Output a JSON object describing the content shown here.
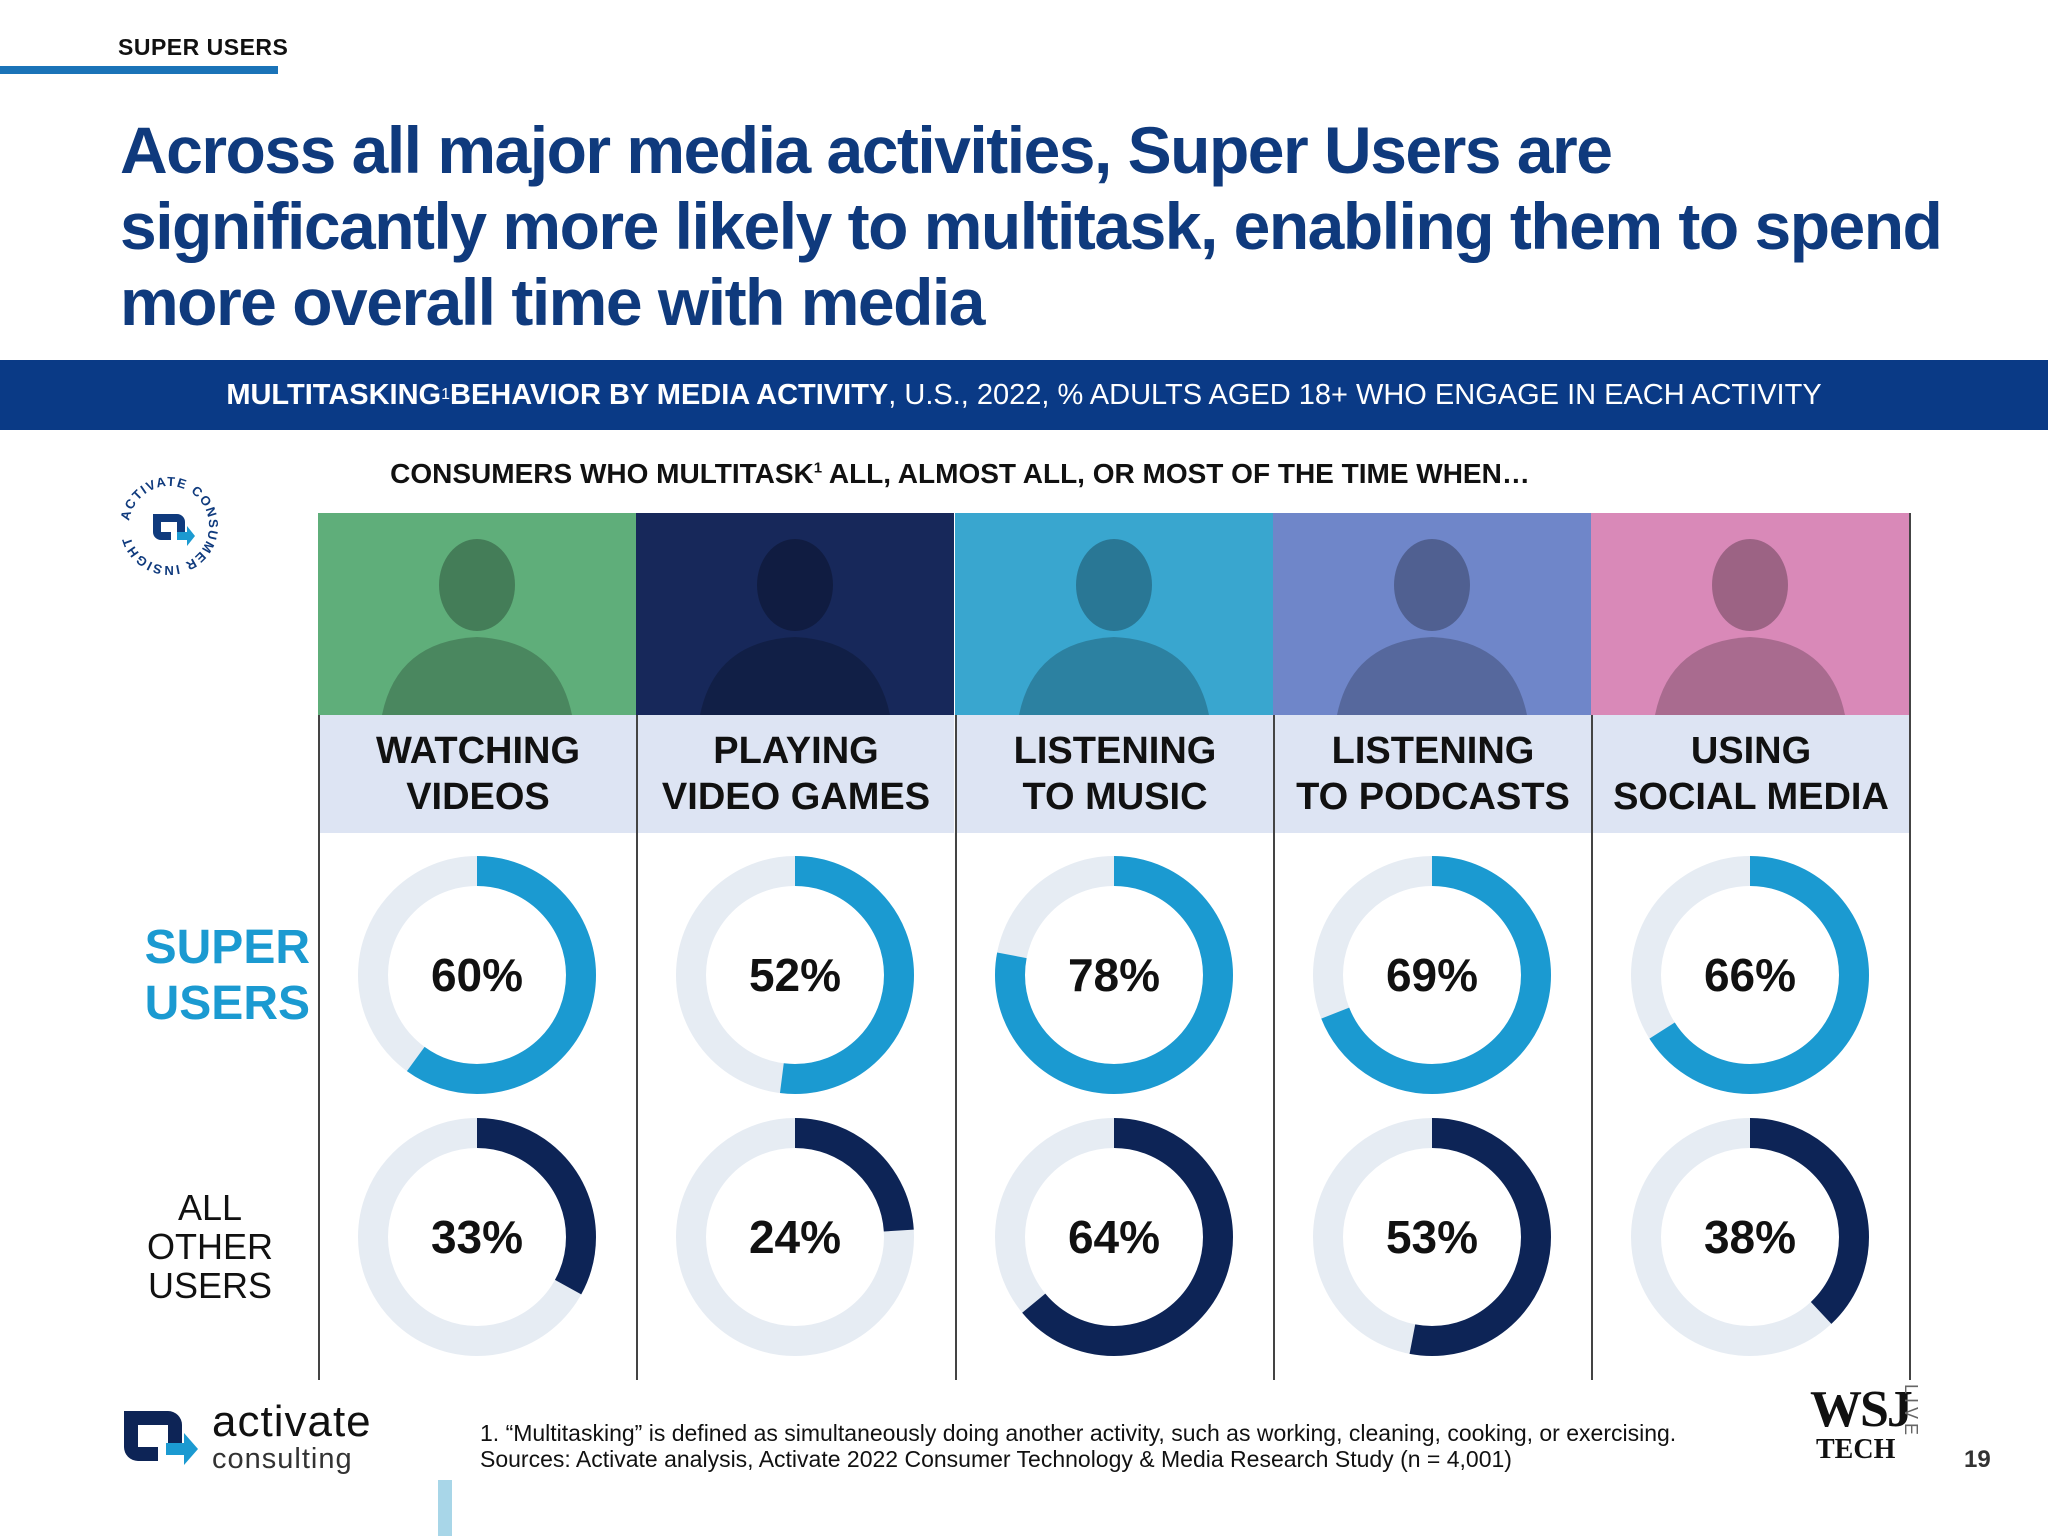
{
  "section_tag": "SUPER USERS",
  "headline": "Across all major media activities, Super Users are significantly more likely to multitask, enabling them to spend more overall time with media",
  "band": {
    "bold_part": "MULTITASKING",
    "sup": "1",
    "bold_part2": " BEHAVIOR BY MEDIA ACTIVITY",
    "rest": ", U.S., 2022, % ADULTS AGED 18+ WHO ENGAGE IN EACH ACTIVITY"
  },
  "badge": {
    "text": "ACTIVATE CONSUMER INSIGHT"
  },
  "subhead": {
    "pre": "CONSUMERS WHO MULTITASK",
    "sup": "1",
    "post": " ALL, ALMOST ALL, OR MOST OF THE TIME WHEN…"
  },
  "row_labels": {
    "super_1": "SUPER",
    "super_2": "USERS",
    "other_1": "ALL",
    "other_2": "OTHER",
    "other_3": "USERS"
  },
  "colors": {
    "super": "#1b9ad1",
    "other": "#0d2456",
    "track": "#e6ecf3",
    "band": "#0a3a86",
    "headline": "#0f3a7d",
    "label_bg": "#dde4f3",
    "photo_tints": [
      "#5fae7a",
      "#17285a",
      "#39a6cf",
      "#6f86c9",
      "#d989b8"
    ]
  },
  "chart_data": {
    "type": "donut",
    "title": "MULTITASKING BEHAVIOR BY MEDIA ACTIVITY, U.S., 2022",
    "categories": [
      [
        "WATCHING",
        "VIDEOS"
      ],
      [
        "PLAYING",
        "VIDEO GAMES"
      ],
      [
        "LISTENING",
        "TO MUSIC"
      ],
      [
        "LISTENING",
        "TO PODCASTS"
      ],
      [
        "USING",
        "SOCIAL MEDIA"
      ]
    ],
    "series": [
      {
        "name": "SUPER USERS",
        "values": [
          60,
          52,
          78,
          69,
          66
        ],
        "labels": [
          "60%",
          "52%",
          "78%",
          "69%",
          "66%"
        ]
      },
      {
        "name": "ALL OTHER USERS",
        "values": [
          33,
          24,
          64,
          53,
          38
        ],
        "labels": [
          "33%",
          "24%",
          "64%",
          "53%",
          "38%"
        ]
      }
    ],
    "unit": "%"
  },
  "brand": {
    "name": "activate",
    "sub": "consulting"
  },
  "footnote": {
    "line1": "1. “Multitasking” is defined as simultaneously doing another activity, such as working, cleaning, cooking, or exercising.",
    "line2": "Sources: Activate analysis, Activate 2022 Consumer Technology & Media Research Study (n = 4,001)"
  },
  "wsj": {
    "main": "WSJ",
    "tech": "TECH",
    "live": "LIVE"
  },
  "page_number": "19"
}
